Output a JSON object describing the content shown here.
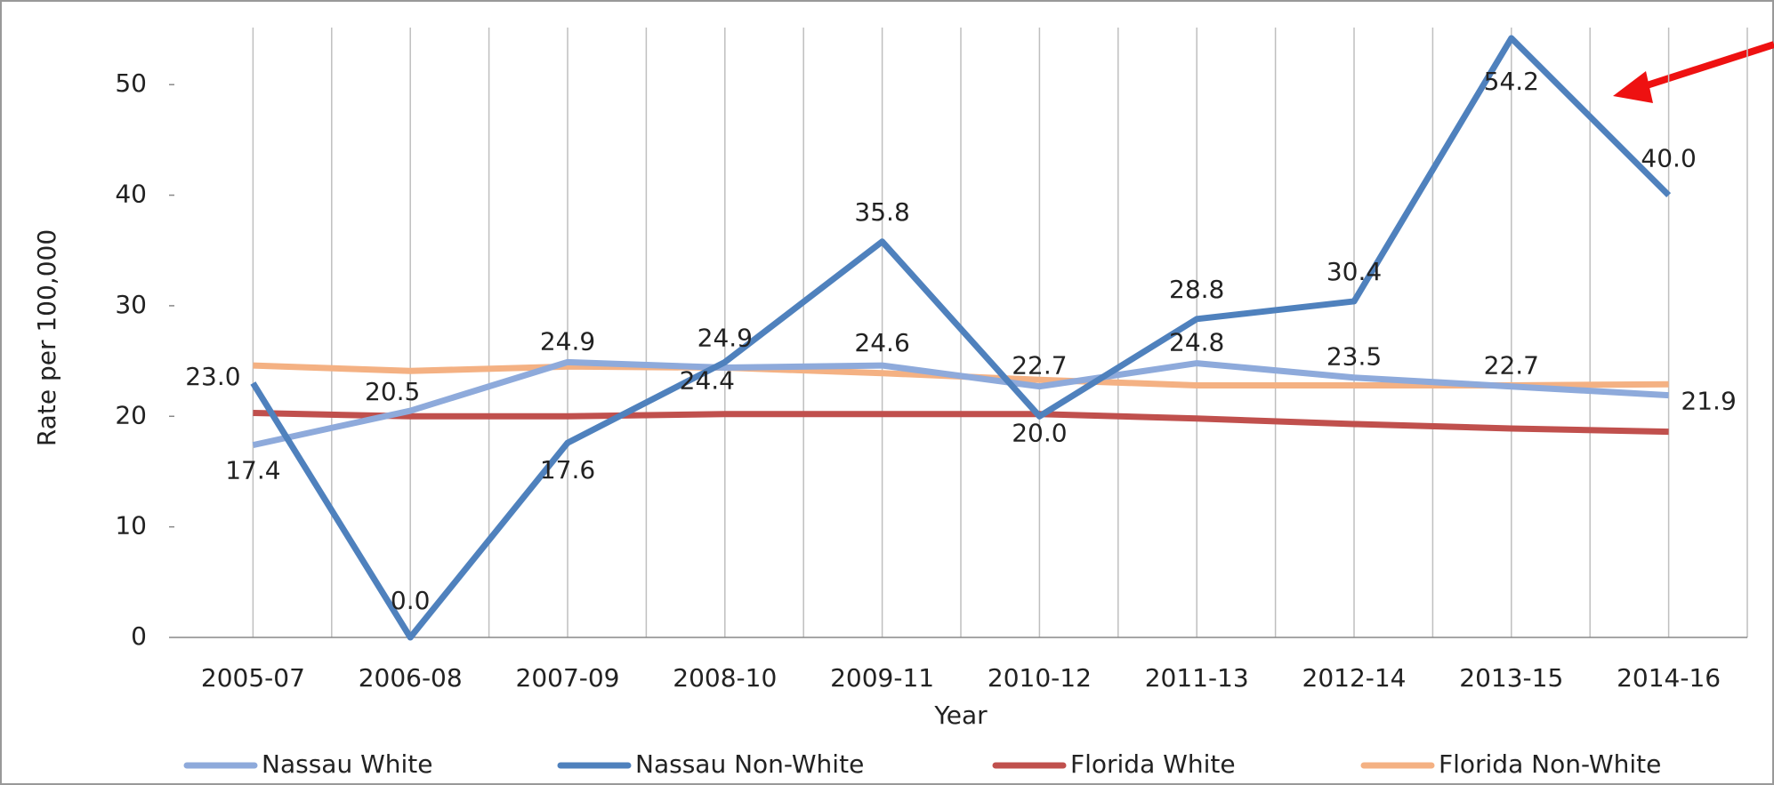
{
  "chart_data": {
    "type": "line",
    "y_label": "Rate per 100,000",
    "x_label": "Year",
    "categories": [
      "2005-07",
      "2006-08",
      "2007-09",
      "2008-10",
      "2009-11",
      "2010-12",
      "2011-13",
      "2012-14",
      "2013-15",
      "2014-16"
    ],
    "series": [
      {
        "name": "Nassau White",
        "color": "#8eaadb",
        "values": [
          17.4,
          20.5,
          24.9,
          24.4,
          24.6,
          22.7,
          24.8,
          23.5,
          22.7,
          21.9
        ],
        "value_labels": [
          "17.4",
          "20.5",
          "24.9",
          "24.4",
          "24.6",
          "22.7",
          "24.8",
          "23.5",
          "22.7",
          "21.9"
        ]
      },
      {
        "name": "Nassau Non-White",
        "color": "#4f81bd",
        "values": [
          23.0,
          0.0,
          17.6,
          24.9,
          35.8,
          20.0,
          28.8,
          30.4,
          54.2,
          40.0
        ],
        "value_labels": [
          "23.0",
          "0.0",
          "17.6",
          "24.9",
          "35.8",
          "20.0",
          "28.8",
          "30.4",
          "54.2",
          "40.0"
        ]
      },
      {
        "name": "Florida White",
        "color": "#c0504d",
        "values": [
          20.3,
          20.0,
          20.0,
          20.2,
          20.2,
          20.2,
          19.8,
          19.3,
          18.9,
          18.6
        ]
      },
      {
        "name": "Florida Non-White",
        "color": "#f4b183",
        "values": [
          24.6,
          24.1,
          24.5,
          24.4,
          23.9,
          23.3,
          22.8,
          22.8,
          22.8,
          22.9
        ]
      }
    ],
    "ylim": [
      0,
      55
    ],
    "yticks": [
      0,
      10,
      20,
      30,
      40,
      50
    ],
    "legend": "bottom"
  }
}
